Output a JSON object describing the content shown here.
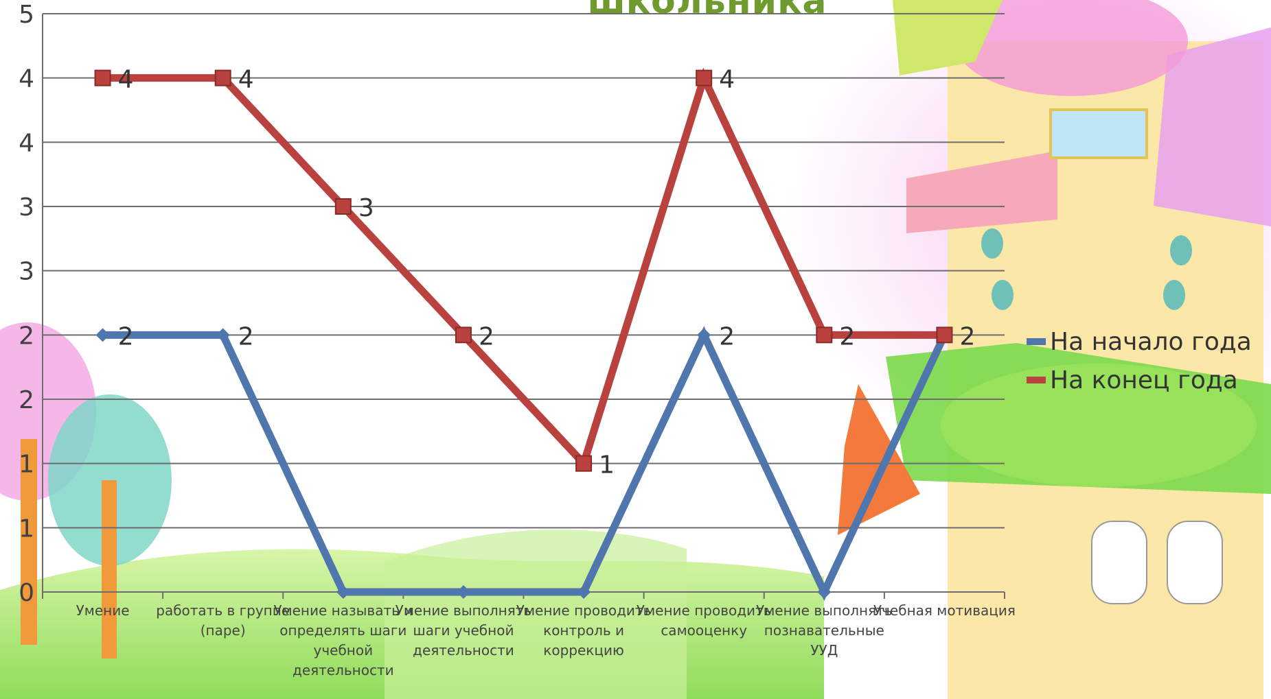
{
  "chart_data": {
    "type": "line",
    "title": "школьника",
    "yticks": [
      "0",
      "1",
      "1",
      "2",
      "2",
      "3",
      "3",
      "4",
      "4",
      "5"
    ],
    "ylim": [
      0,
      4.5
    ],
    "grid": true,
    "legend_position": "right",
    "categories": [
      "Умение",
      "работать в группе (паре)",
      "Умение называть и определять шаги учебной деятельности",
      "Умение выполнять шаги учебной деятельности",
      "Умение проводить контроль и коррекцию",
      "Умение проводить самооценку",
      "Умение выполнять познавательные УУД",
      "Учебная мотивация"
    ],
    "series": [
      {
        "name": "На начало года",
        "color": "#4f76ad",
        "marker": "diamond",
        "values": [
          2,
          2,
          0,
          0,
          0,
          2,
          0,
          2
        ],
        "labels": [
          "2",
          "2",
          "",
          "",
          "",
          "2",
          "",
          ""
        ]
      },
      {
        "name": "На конец года",
        "color": "#b9413e",
        "marker": "square",
        "values": [
          4,
          4,
          3,
          2,
          1,
          4,
          2,
          2
        ],
        "labels": [
          "4",
          "4",
          "3",
          "2",
          "1",
          "4",
          "2",
          "2"
        ]
      }
    ]
  }
}
